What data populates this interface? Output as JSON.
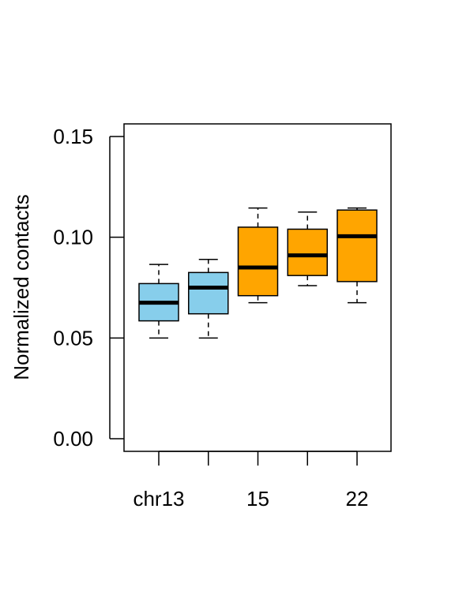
{
  "chart_data": {
    "type": "boxplot",
    "title": "",
    "ylabel": "Normalized contacts",
    "xlabel": "",
    "ylim": [
      0.0,
      0.15
    ],
    "yticks": [
      0.0,
      0.05,
      0.1,
      0.15
    ],
    "ytick_labels": [
      "0.00",
      "0.05",
      "0.10",
      "0.15"
    ],
    "x_tick_labels": [
      "chr13",
      "",
      "15",
      "",
      "22"
    ],
    "boxes": [
      {
        "whisker_low": 0.05,
        "q1": 0.0585,
        "median": 0.0675,
        "q3": 0.077,
        "whisker_high": 0.0865,
        "color": "#87CEEB"
      },
      {
        "whisker_low": 0.05,
        "q1": 0.062,
        "median": 0.075,
        "q3": 0.0825,
        "whisker_high": 0.089,
        "color": "#87CEEB"
      },
      {
        "whisker_low": 0.0675,
        "q1": 0.071,
        "median": 0.085,
        "q3": 0.105,
        "whisker_high": 0.1145,
        "color": "#FFA500"
      },
      {
        "whisker_low": 0.076,
        "q1": 0.081,
        "median": 0.091,
        "q3": 0.104,
        "whisker_high": 0.1125,
        "color": "#FFA500"
      },
      {
        "whisker_low": 0.0675,
        "q1": 0.078,
        "median": 0.1005,
        "q3": 0.1135,
        "whisker_high": 0.1145,
        "color": "#FFA500"
      }
    ]
  }
}
